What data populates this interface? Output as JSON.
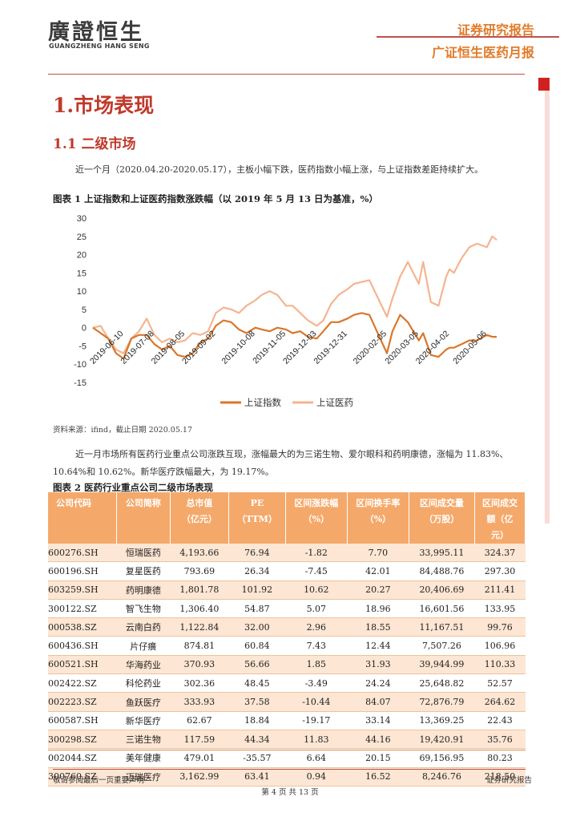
{
  "header": {
    "logo_cn": "廣證恒生",
    "logo_en": "GUANGZHENG HANG SENG",
    "report_type": "证券研究报告",
    "report_name": "广证恒生医药月报"
  },
  "section": {
    "h1": "1.市场表现",
    "h2": "1.1 二级市场",
    "para1": "近一个月（2020.04.20-2020.05.17），主板小幅下跌，医药指数小幅上涨，与上证指数差距持续扩大。",
    "fig1_caption": "图表 1  上证指数和上证医药指数涨跌幅（以 2019 年 5 月 13 日为基准，%）",
    "source": "资料来源：ifind，截止日期 2020.05.17",
    "para2": "近一月市场所有医药行业重点公司涨跌互现，涨幅最大的为三诺生物、爱尔眼科和药明康德，涨幅为 11.83%、10.64%和 10.62%。新华医疗跌幅最大，为 19.17%。",
    "fig2_caption": "图表 2 医药行业重点公司二级市场表现"
  },
  "chart_data": {
    "type": "line",
    "title": "",
    "xlabel": "",
    "ylabel": "",
    "ylim": [
      -15,
      30
    ],
    "yticks": [
      30,
      25,
      20,
      15,
      10,
      5,
      0,
      -5,
      -10,
      -15
    ],
    "x": [
      "2019-05-13",
      "2019-05-20",
      "2019-05-27",
      "2019-06-03",
      "2019-06-10",
      "2019-06-17",
      "2019-06-24",
      "2019-07-01",
      "2019-07-08",
      "2019-07-15",
      "2019-07-22",
      "2019-07-29",
      "2019-08-05",
      "2019-08-12",
      "2019-08-19",
      "2019-08-26",
      "2019-09-02",
      "2019-09-09",
      "2019-09-16",
      "2019-09-23",
      "2019-09-30",
      "2019-10-08",
      "2019-10-14",
      "2019-10-21",
      "2019-10-28",
      "2019-11-05",
      "2019-11-11",
      "2019-11-18",
      "2019-11-25",
      "2019-12-03",
      "2019-12-09",
      "2019-12-16",
      "2019-12-23",
      "2019-12-31",
      "2020-01-06",
      "2020-01-13",
      "2020-01-20",
      "2020-02-05",
      "2020-02-10",
      "2020-02-17",
      "2020-02-24",
      "2020-03-05",
      "2020-03-09",
      "2020-03-16",
      "2020-03-23",
      "2020-03-30",
      "2020-04-02",
      "2020-04-06",
      "2020-04-13",
      "2020-04-20",
      "2020-04-27",
      "2020-05-06",
      "2020-05-11",
      "2020-05-15"
    ],
    "xtick_labels": [
      "2019-06-10",
      "2019-07-08",
      "2019-08-05",
      "2019-09-02",
      "2019-10-08",
      "2019-11-05",
      "2019-12-03",
      "2019-12-31",
      "2020-02-05",
      "2020-03-05",
      "2020-04-02",
      "2020-05-06"
    ],
    "series": [
      {
        "name": "上证指数",
        "color": "#d9772b",
        "values": [
          0,
          -1.5,
          -3,
          -7,
          -8.5,
          -3,
          -2,
          -2,
          -4.5,
          -6,
          -5,
          -7.5,
          -8,
          -7,
          -4,
          -3,
          0.5,
          2,
          1.5,
          -0.5,
          -1.5,
          0,
          -0.5,
          -1,
          0,
          -0.5,
          -1.5,
          -1,
          -2.5,
          -3,
          -1,
          1.5,
          1.5,
          2.5,
          3.5,
          4,
          3.5,
          -7,
          -1,
          3.5,
          1.5,
          -3.5,
          -1.5,
          -7.5,
          -8,
          -6,
          -5.5,
          -5.5,
          -4.5,
          -3.5,
          -3.5,
          -2,
          -2.5,
          -2.5
        ]
      },
      {
        "name": "上证医药",
        "color": "#f5b491",
        "values": [
          0,
          0.5,
          -3,
          -6,
          -7,
          -3,
          -1,
          2.5,
          -2,
          -4,
          -3,
          -4,
          -3.5,
          -1.5,
          -2,
          -1,
          4,
          5.5,
          5,
          4,
          6,
          7.5,
          9,
          10,
          9,
          6,
          6,
          4,
          2,
          0.5,
          2,
          6.5,
          9,
          10.5,
          12,
          12.5,
          13,
          3,
          8,
          14,
          18,
          12,
          18,
          7,
          6,
          14,
          16,
          15,
          19,
          22,
          23,
          22,
          25,
          24
        ]
      }
    ],
    "legend": "bottom",
    "grid": false
  },
  "table": {
    "headers": [
      [
        "公司代码"
      ],
      [
        "公司简称"
      ],
      [
        "总市值",
        "（亿元）"
      ],
      [
        "PE",
        "（TTM）"
      ],
      [
        "区间涨跌幅",
        "（%）"
      ],
      [
        "区间换手率",
        "（%）"
      ],
      [
        "区间成交量",
        "（万股）"
      ],
      [
        "区间成交",
        "额（亿",
        "元）"
      ]
    ],
    "rows": [
      [
        "600276.SH",
        "恒瑞医药",
        "4,193.66",
        "76.94",
        "-1.82",
        "7.70",
        "33,995.11",
        "324.37"
      ],
      [
        "600196.SH",
        "复星医药",
        "793.69",
        "26.34",
        "-7.45",
        "42.01",
        "84,488.76",
        "297.30"
      ],
      [
        "603259.SH",
        "药明康德",
        "1,801.78",
        "101.92",
        "10.62",
        "20.27",
        "20,406.69",
        "211.41"
      ],
      [
        "300122.SZ",
        "智飞生物",
        "1,306.40",
        "54.87",
        "5.07",
        "18.96",
        "16,601.56",
        "133.95"
      ],
      [
        "000538.SZ",
        "云南白药",
        "1,122.84",
        "32.00",
        "2.96",
        "18.55",
        "11,167.51",
        "99.76"
      ],
      [
        "600436.SH",
        "片仔癀",
        "874.81",
        "60.84",
        "7.43",
        "12.44",
        "7,507.26",
        "106.96"
      ],
      [
        "600521.SH",
        "华海药业",
        "370.93",
        "56.66",
        "1.85",
        "31.93",
        "39,944.99",
        "110.33"
      ],
      [
        "002422.SZ",
        "科伦药业",
        "302.36",
        "48.45",
        "-3.49",
        "24.24",
        "25,648.82",
        "52.57"
      ],
      [
        "002223.SZ",
        "鱼跃医疗",
        "333.93",
        "37.58",
        "-10.44",
        "84.07",
        "72,876.79",
        "264.62"
      ],
      [
        "600587.SH",
        "新华医疗",
        "62.67",
        "18.84",
        "-19.17",
        "33.14",
        "13,369.25",
        "22.43"
      ],
      [
        "300298.SZ",
        "三诺生物",
        "117.59",
        "44.34",
        "11.83",
        "44.16",
        "19,420.91",
        "35.76"
      ],
      [
        "002044.SZ",
        "美年健康",
        "479.01",
        "-35.57",
        "6.64",
        "20.15",
        "69,156.95",
        "80.23"
      ],
      [
        "300760.SZ",
        "迈瑞医疗",
        "3,162.99",
        "63.41",
        "0.94",
        "16.52",
        "8,246.76",
        "218.50"
      ]
    ]
  },
  "footer": {
    "left": "敬请参阅最后一页重要声明",
    "right": "证券研究报告",
    "page": "第 4 页 共 13 页"
  },
  "colors": {
    "accent": "#e07b2a",
    "heading_red": "#c0392b",
    "table_header": "#f4a96b",
    "row_tint": "#fde6d3"
  }
}
